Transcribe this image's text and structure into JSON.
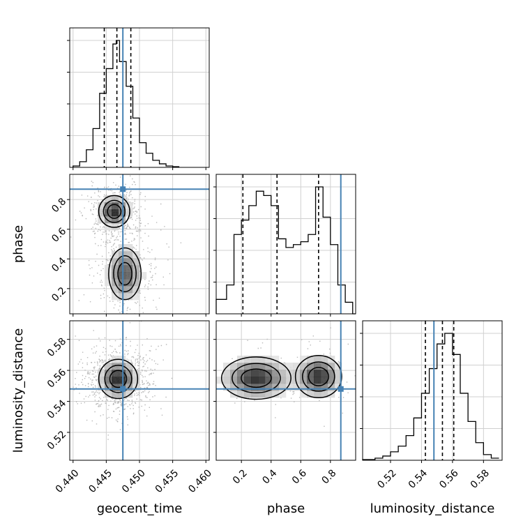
{
  "chart_data": {
    "type": "corner",
    "parameters": [
      "geocent_time",
      "phase",
      "luminosity_distance"
    ],
    "truths": {
      "geocent_time": 0.4475,
      "phase": 0.87,
      "luminosity_distance": 0.548
    },
    "truth_color": "#4682b4",
    "grid": true,
    "ranges": {
      "geocent_time": [
        0.4395,
        0.4605
      ],
      "phase": [
        0.03,
        0.97
      ],
      "luminosity_distance": [
        0.502,
        0.592
      ]
    },
    "ticks": {
      "geocent_time": [
        "0.440",
        "0.445",
        "0.450",
        "0.455",
        "0.460"
      ],
      "phase": [
        "0.2",
        "0.4",
        "0.6",
        "0.8"
      ],
      "luminosity_distance": [
        "0.52",
        "0.54",
        "0.56",
        "0.58"
      ]
    },
    "histograms": {
      "geocent_time": {
        "edges": [
          0.44,
          0.441,
          0.442,
          0.443,
          0.444,
          0.445,
          0.446,
          0.4465,
          0.447,
          0.448,
          0.449,
          0.45,
          0.451,
          0.452,
          0.453,
          0.454,
          0.455,
          0.456
        ],
        "counts": [
          2,
          8,
          25,
          55,
          105,
          140,
          175,
          180,
          150,
          115,
          70,
          35,
          20,
          10,
          5,
          2,
          1
        ],
        "quantiles": [
          0.4447,
          0.4466,
          0.4487
        ]
      },
      "phase": {
        "edges": [
          0.0,
          0.05,
          0.1,
          0.15,
          0.2,
          0.25,
          0.3,
          0.35,
          0.4,
          0.45,
          0.5,
          0.55,
          0.6,
          0.65,
          0.7,
          0.75,
          0.8,
          0.85,
          0.9,
          0.95,
          1.0
        ],
        "counts": [
          10,
          10,
          20,
          55,
          65,
          75,
          85,
          82,
          75,
          52,
          46,
          48,
          50,
          55,
          88,
          67,
          48,
          20,
          8,
          0
        ],
        "quantiles": [
          0.21,
          0.44,
          0.72
        ]
      },
      "luminosity_distance": {
        "edges": [
          0.5,
          0.51,
          0.515,
          0.52,
          0.525,
          0.53,
          0.535,
          0.54,
          0.545,
          0.55,
          0.555,
          0.56,
          0.565,
          0.57,
          0.575,
          0.58,
          0.585,
          0.59
        ],
        "counts": [
          1,
          3,
          6,
          12,
          20,
          35,
          60,
          95,
          130,
          165,
          180,
          150,
          95,
          55,
          25,
          8,
          3
        ],
        "quantiles": [
          0.5425,
          0.5535,
          0.5608
        ]
      }
    },
    "joint_modes": {
      "phase_vs_geocent_time": [
        {
          "x": 0.4462,
          "y": 0.72,
          "sx": 0.0012,
          "sy": 0.055,
          "w": 1.0
        },
        {
          "x": 0.4478,
          "y": 0.3,
          "sx": 0.0014,
          "sy": 0.1,
          "w": 0.8
        }
      ],
      "luminosity_distance_vs_geocent_time": [
        {
          "x": 0.4468,
          "y": 0.5545,
          "sx": 0.0015,
          "sy": 0.0065,
          "w": 1.0
        }
      ],
      "luminosity_distance_vs_phase": [
        {
          "x": 0.3,
          "y": 0.555,
          "sx": 0.12,
          "sy": 0.007,
          "w": 1.0
        },
        {
          "x": 0.72,
          "y": 0.556,
          "sx": 0.08,
          "sy": 0.007,
          "w": 1.0
        }
      ]
    }
  }
}
